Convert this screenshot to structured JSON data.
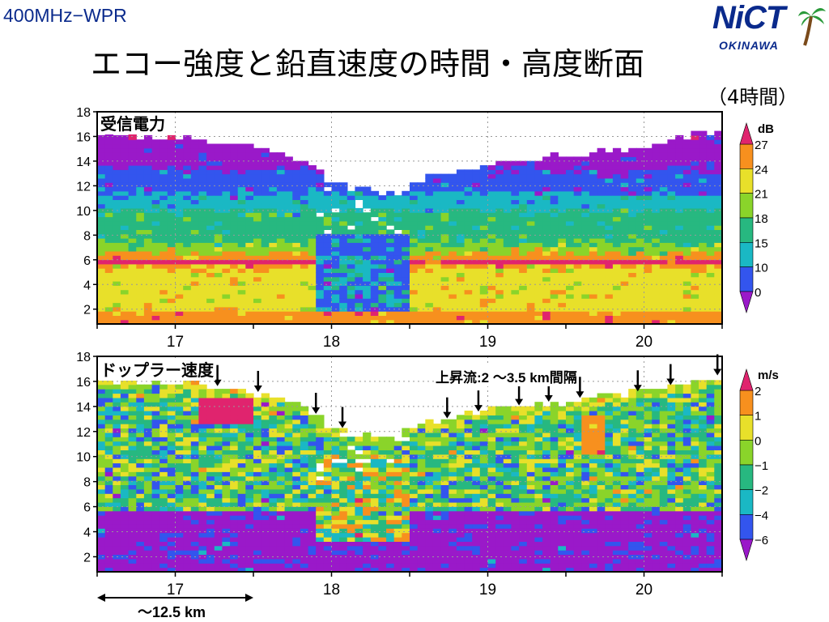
{
  "header": {
    "tag": "400MHz−WPR",
    "title": "エコー強度と鉛直速度の時間・高度断面",
    "subtitle": "（4時間）",
    "logo_text": "NiCT",
    "logo_sub": "OKINAWA"
  },
  "colors": {
    "brand": "#0a2a8c",
    "palette": [
      "#9a19c9",
      "#3355ee",
      "#1ab8c4",
      "#27b880",
      "#8ad42a",
      "#e8e02a",
      "#f7901e",
      "#e0246e"
    ]
  },
  "chart_data": [
    {
      "type": "heatmap",
      "title": "受信電力",
      "xlabel": "",
      "ylabel": "",
      "x_ticks": [
        "17",
        "18",
        "19",
        "20"
      ],
      "y_ticks": [
        "2",
        "4",
        "6",
        "8",
        "10",
        "12",
        "14",
        "16",
        "18"
      ],
      "xlim": [
        16.5,
        20.5
      ],
      "ylim": [
        0.8,
        18
      ],
      "colorbar": {
        "unit": "dB",
        "labels": [
          "27",
          "24",
          "21",
          "18",
          "15",
          "10",
          "0"
        ]
      },
      "echo_top_km": [
        [
          16.5,
          16.1
        ],
        [
          17.0,
          15.8
        ],
        [
          17.5,
          15.0
        ],
        [
          17.8,
          14.0
        ],
        [
          18.0,
          12.3
        ],
        [
          18.2,
          11.5
        ],
        [
          18.4,
          11.3
        ],
        [
          18.6,
          12.4
        ],
        [
          19.0,
          13.5
        ],
        [
          19.5,
          14.3
        ],
        [
          20.0,
          15.0
        ],
        [
          20.5,
          16.3
        ]
      ],
      "bright_band_km": 5.6,
      "layers_km": [
        {
          "top": 16.0,
          "class": 0
        },
        {
          "top": 13.2,
          "class": 1
        },
        {
          "top": 11.2,
          "class": 2
        },
        {
          "top": 9.8,
          "class": 3
        },
        {
          "top": 7.2,
          "class": 4
        },
        {
          "top": 6.4,
          "class": 6
        },
        {
          "top": 5.2,
          "class": 5
        },
        {
          "top": 1.5,
          "class": 6
        }
      ]
    },
    {
      "type": "heatmap",
      "title": "ドップラー速度",
      "xlabel": "",
      "ylabel": "",
      "x_ticks": [
        "17",
        "18",
        "19",
        "20"
      ],
      "y_ticks": [
        "2",
        "4",
        "6",
        "8",
        "10",
        "12",
        "14",
        "16",
        "18"
      ],
      "xlim": [
        16.5,
        20.5
      ],
      "ylim": [
        0.8,
        18
      ],
      "colorbar": {
        "unit": "m/s",
        "labels": [
          "2",
          "1",
          "0",
          "−1",
          "−2",
          "−4",
          "−6"
        ]
      },
      "echo_top_km": [
        [
          16.5,
          16.1
        ],
        [
          17.0,
          15.8
        ],
        [
          17.5,
          15.0
        ],
        [
          17.8,
          14.0
        ],
        [
          18.0,
          12.3
        ],
        [
          18.2,
          11.5
        ],
        [
          18.4,
          11.3
        ],
        [
          18.6,
          12.4
        ],
        [
          19.0,
          13.5
        ],
        [
          19.5,
          14.3
        ],
        [
          20.0,
          15.0
        ],
        [
          20.5,
          16.3
        ]
      ],
      "annotation": "上昇流:2 〜3.5 km間隔",
      "updraft_arrow_hours": [
        17.27,
        17.53,
        17.9,
        18.07,
        18.74,
        18.94,
        19.2,
        19.39,
        19.59,
        19.96,
        20.17,
        20.47
      ],
      "melting_level_km": 5.6
    }
  ],
  "scale_bar": {
    "label": "〜12.5 km",
    "span_hours": 1.0
  }
}
